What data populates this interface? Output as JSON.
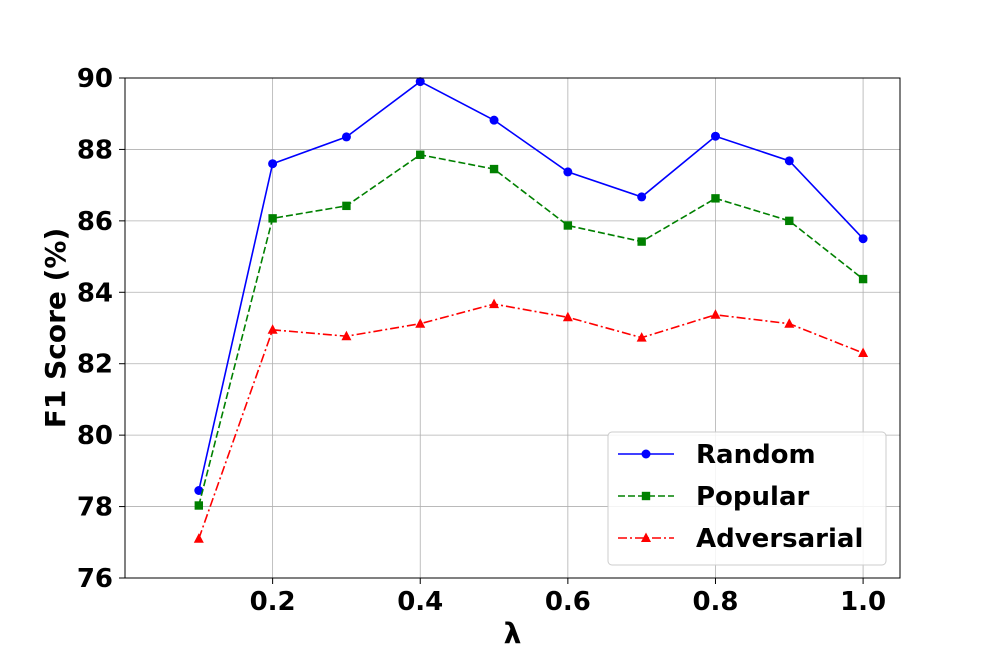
{
  "chart_data": {
    "type": "line",
    "xlabel": "λ",
    "ylabel": "F1 Score (%)",
    "xlim": [
      0.0,
      1.05
    ],
    "ylim": [
      76,
      90
    ],
    "xticks": [
      0.2,
      0.4,
      0.6,
      0.8,
      1.0
    ],
    "xtick_labels": [
      "0.2",
      "0.4",
      "0.6",
      "0.8",
      "1.0"
    ],
    "yticks": [
      76,
      78,
      80,
      82,
      84,
      86,
      88,
      90
    ],
    "ytick_labels": [
      "76",
      "78",
      "80",
      "82",
      "84",
      "86",
      "88",
      "90"
    ],
    "grid": true,
    "legend_position": "lower-right",
    "x": [
      0.1,
      0.2,
      0.3,
      0.4,
      0.5,
      0.6,
      0.7,
      0.8,
      0.9,
      1.0
    ],
    "series": [
      {
        "name": "Random",
        "color": "#0000ff",
        "linestyle": "solid",
        "marker": "circle",
        "values": [
          78.45,
          87.6,
          88.35,
          89.9,
          88.82,
          87.37,
          86.67,
          88.37,
          87.68,
          85.5
        ]
      },
      {
        "name": "Popular",
        "color": "#008000",
        "linestyle": "dashed",
        "marker": "square",
        "values": [
          78.03,
          86.07,
          86.42,
          87.85,
          87.45,
          85.87,
          85.42,
          86.63,
          86.0,
          84.37
        ]
      },
      {
        "name": "Adversarial",
        "color": "#ff0000",
        "linestyle": "dashdot",
        "marker": "triangle",
        "values": [
          77.1,
          82.95,
          82.77,
          83.12,
          83.67,
          83.3,
          82.73,
          83.37,
          83.12,
          82.3
        ]
      }
    ]
  }
}
